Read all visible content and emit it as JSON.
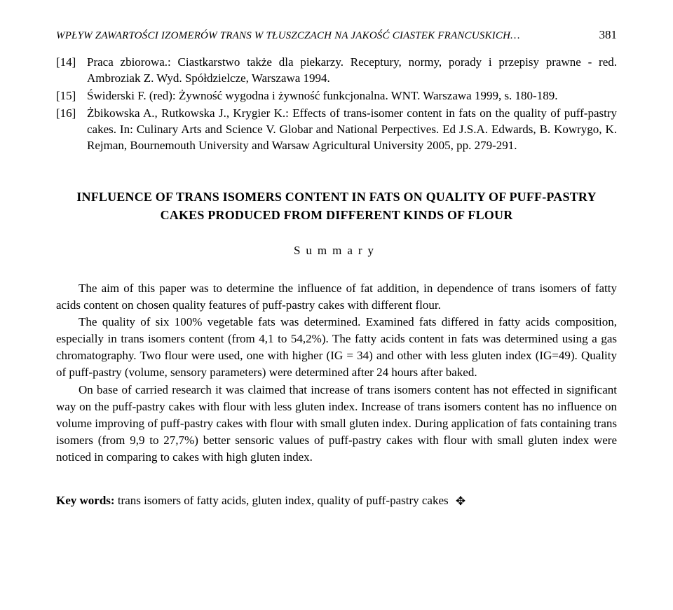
{
  "header": {
    "running_title": "WPŁYW ZAWARTOŚCI IZOMERÓW TRANS W TŁUSZCZACH NA JAKOŚĆ CIASTEK FRANCUSKICH…",
    "page_number": "381"
  },
  "references": [
    {
      "num": "[14]",
      "text": "Praca zbiorowa.: Ciastkarstwo także dla piekarzy. Receptury, normy, porady i przepisy prawne - red. Ambroziak Z. Wyd. Spółdzielcze, Warszawa 1994."
    },
    {
      "num": "[15]",
      "text": "Świderski F. (red): Żywność wygodna i żywność funkcjonalna. WNT. Warszawa 1999, s. 180-189."
    },
    {
      "num": "[16]",
      "text": "Żbikowska A., Rutkowska J., Krygier K.: Effects of trans-isomer content in fats on the quality of puff-pastry cakes. In: Culinary Arts and Science V. Globar and National Perpectives. Ed J.S.A. Edwards, B. Kowrygo, K. Rejman, Bournemouth University and Warsaw Agricultural University 2005, pp. 279-291."
    }
  ],
  "section": {
    "title_line1": "INFLUENCE OF TRANS ISOMERS CONTENT IN FATS ON QUALITY OF PUFF-PASTRY",
    "title_line2": "CAKES PRODUCED FROM DIFFERENT KINDS OF FLOUR",
    "summary_label": "Summary"
  },
  "paragraphs": [
    "The aim of this paper was to determine the influence of fat addition, in dependence of trans isomers of fatty acids content on chosen quality features of puff-pastry cakes with different flour.",
    "The quality of six 100% vegetable fats was determined. Examined fats differed in fatty acids composition, especially in trans isomers content (from 4,1 to 54,2%). The fatty acids content in fats was determined using a gas chromatography. Two flour were used, one with higher (IG = 34) and other with less gluten index (IG=49). Quality of puff-pastry (volume, sensory parameters) were determined after 24 hours after baked.",
    "On base of carried research it was claimed that increase of trans isomers content has not effected in significant way on the puff-pastry cakes with flour with less gluten index. Increase of trans isomers content has no influence on volume improving of puff-pastry cakes with flour with small gluten index. During application of fats containing trans isomers (from 9,9 to 27,7%) better sensoric values of puff-pastry cakes with flour with small gluten index were noticed in comparing to cakes with high gluten index."
  ],
  "keywords": {
    "label": "Key words:",
    "text": "trans isomers of fatty acids, gluten index, quality of puff-pastry cakes",
    "end_mark": "✥"
  }
}
